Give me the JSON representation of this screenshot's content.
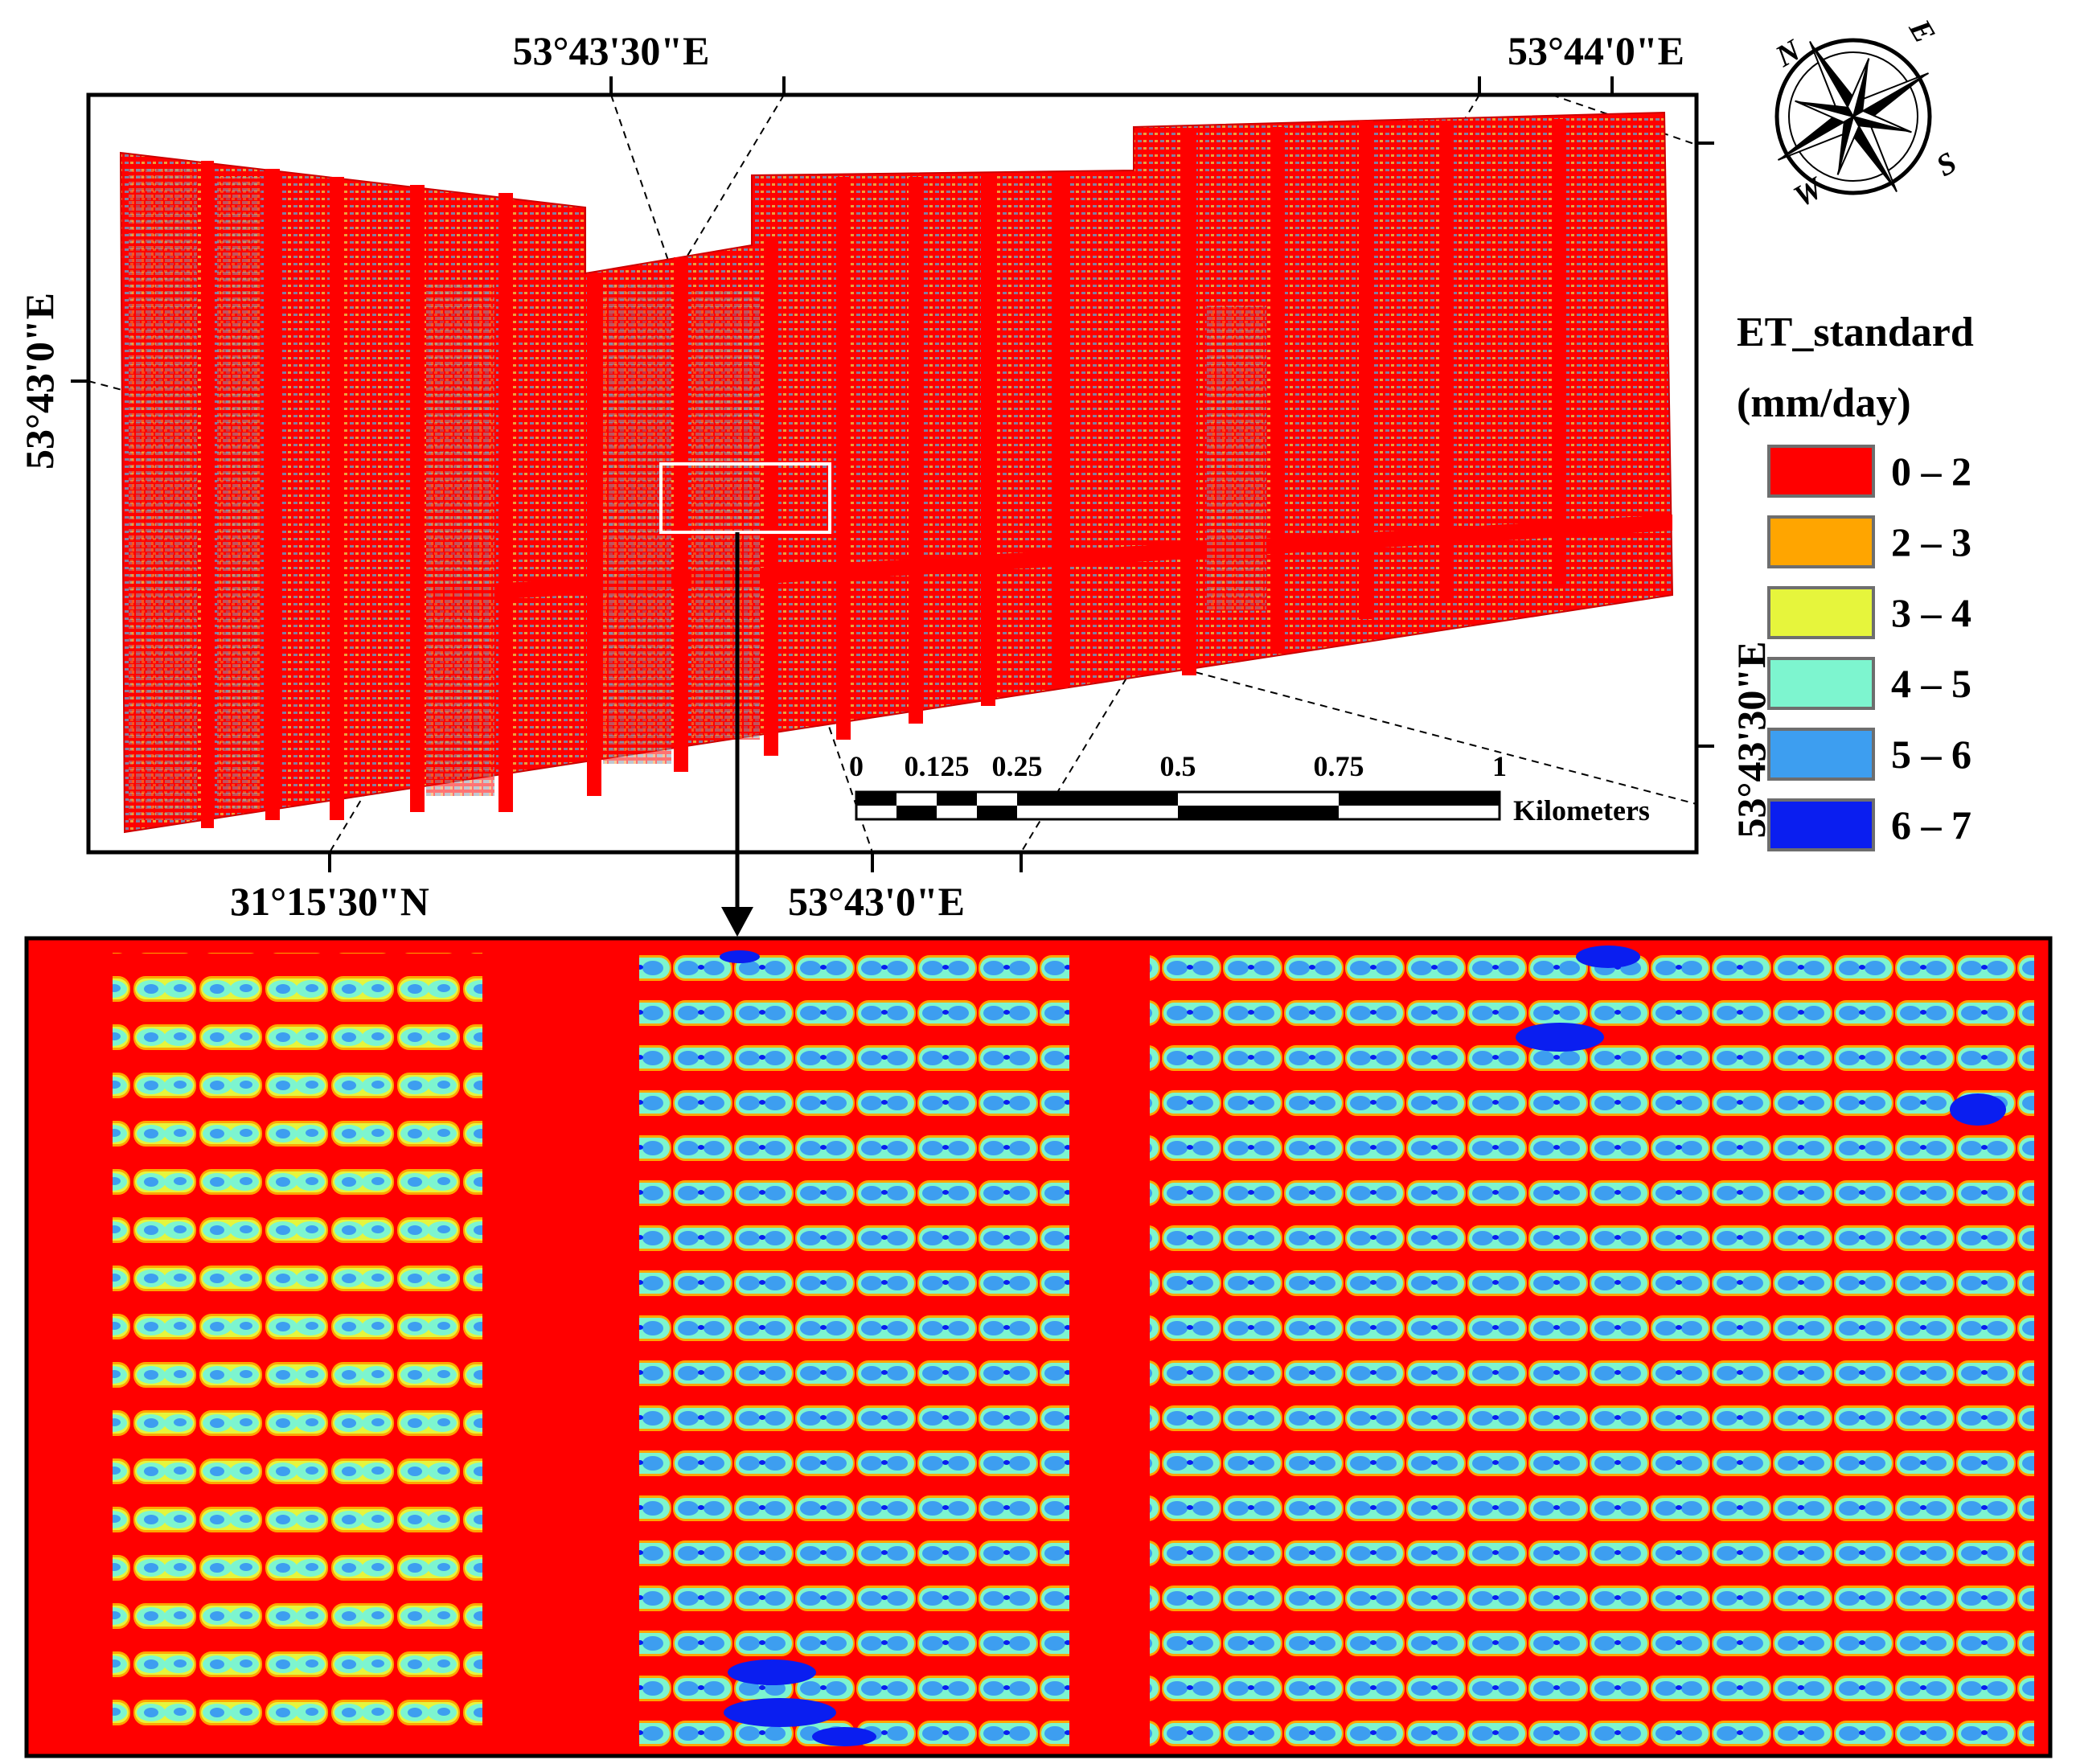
{
  "map": {
    "coords": {
      "top_left": "53°43'30\"E",
      "top_right": "53°44'0\"E",
      "left": "53°43'0\"E",
      "right": "53°43'30\"E",
      "bottom_left": "31°15'30\"N",
      "bottom_right": "53°43'0\"E"
    },
    "compass": {
      "n": "N",
      "e": "E",
      "s": "S",
      "w": "W"
    },
    "scale_bar": {
      "ticks": [
        "0",
        "0.125",
        "0.25",
        "0.5",
        "0.75",
        "1"
      ],
      "unit": "Kilometers"
    }
  },
  "legend": {
    "title_line1": "ET_standard",
    "title_line2": "(mm/day)",
    "classes": [
      {
        "label": "0 – 2",
        "color": "#ff0000"
      },
      {
        "label": "2 – 3",
        "color": "#ffa500"
      },
      {
        "label": "3 – 4",
        "color": "#e6f53c"
      },
      {
        "label": "4 – 5",
        "color": "#7df5cf"
      },
      {
        "label": "5 – 6",
        "color": "#3d9ef0"
      },
      {
        "label": "6 – 7",
        "color": "#0a1ef0"
      }
    ]
  }
}
